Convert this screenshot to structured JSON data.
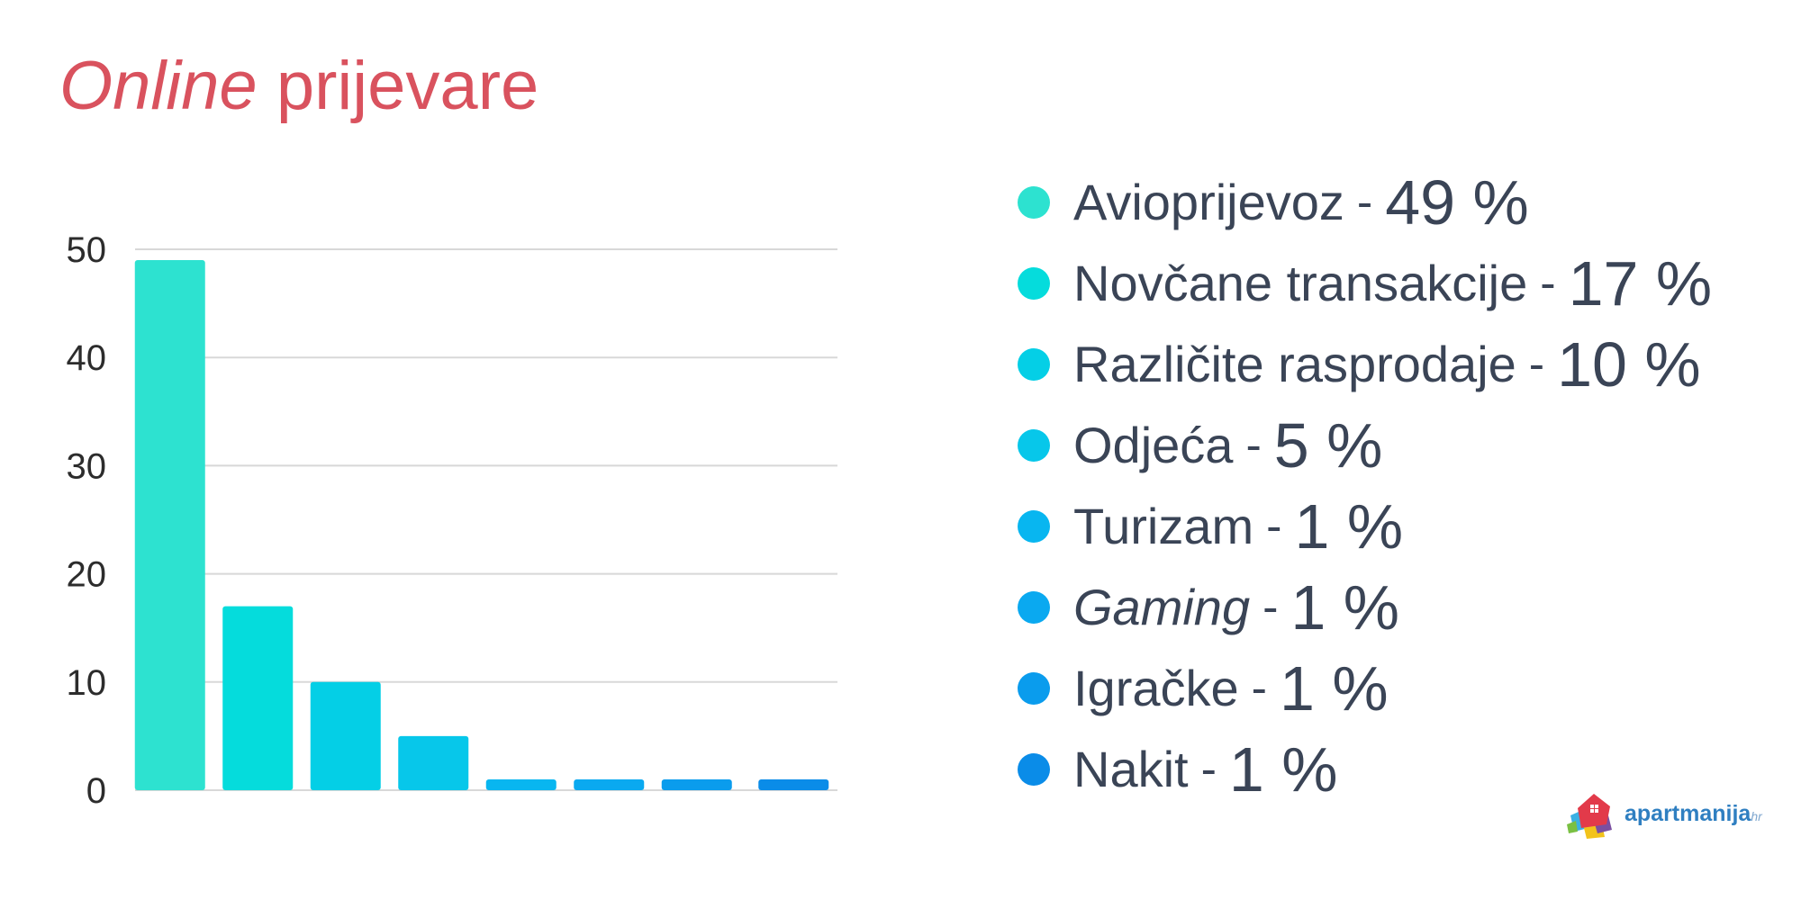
{
  "title": {
    "italic": "Online",
    "rest": "prijevare"
  },
  "chart_data": {
    "type": "bar",
    "categories": [
      "Avioprijevoz",
      "Novčane transakcije",
      "Različite rasprodaje",
      "Odjeća",
      "Turizam",
      "Gaming",
      "Igračke",
      "Nakit"
    ],
    "values": [
      49,
      17,
      10,
      5,
      1,
      1,
      1,
      1
    ],
    "ylim": [
      0,
      50
    ],
    "yticks": [
      "0",
      "10",
      "20",
      "30",
      "40",
      "50"
    ],
    "grid": true,
    "legend_placement": "right",
    "colors": [
      "#2de2d0",
      "#05dcdc",
      "#04cfe6",
      "#07c7ea",
      "#08b6f0",
      "#0aa9f0",
      "#0a9ced",
      "#0a8ce8"
    ],
    "gridline_color": "#d8d8d8"
  },
  "legend": [
    {
      "name": "Avioprijevoz",
      "sep": "-",
      "value": "49 %",
      "color": "#2de2d0",
      "italic": false
    },
    {
      "name": "Novčane transakcije",
      "sep": "-",
      "value": "17 %",
      "color": "#05dcdc",
      "italic": false
    },
    {
      "name": "Različite rasprodaje",
      "sep": "-",
      "value": "10 %",
      "color": "#04cfe6",
      "italic": false
    },
    {
      "name": "Odjeća",
      "sep": "-",
      "value": "5 %",
      "color": "#07c7ea",
      "italic": false
    },
    {
      "name": "Turizam",
      "sep": "-",
      "value": "1 %",
      "color": "#08b6f0",
      "italic": false
    },
    {
      "name": "Gaming",
      "sep": "-",
      "value": "1 %",
      "color": "#0aa9f0",
      "italic": true
    },
    {
      "name": "Igračke",
      "sep": "-",
      "value": "1 %",
      "color": "#0a9ced",
      "italic": false
    },
    {
      "name": "Nakit",
      "sep": "-",
      "value": "1 %",
      "color": "#0a8ce8",
      "italic": false
    }
  ],
  "logo": {
    "name": "apartmanija",
    "tld": "hr",
    "icon": "house-logo-icon"
  }
}
